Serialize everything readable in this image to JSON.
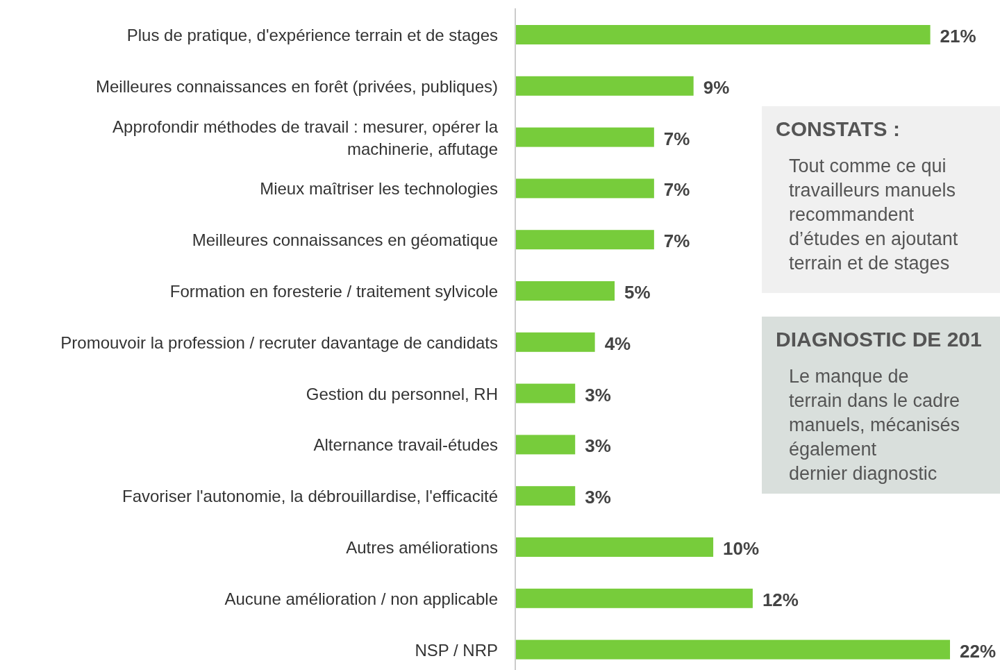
{
  "chart_data": {
    "type": "bar",
    "orientation": "horizontal",
    "categories": [
      "Plus de pratique, d'expérience terrain et de stages",
      "Meilleures connaissances en forêt (privées, publiques)",
      "Approfondir méthodes de travail : mesurer, opérer la machinerie, affutage",
      "Mieux maîtriser les technologies",
      "Meilleures connaissances en géomatique",
      "Formation en foresterie / traitement sylvicole",
      "Promouvoir la profession / recruter davantage de candidats",
      "Gestion du personnel, RH",
      "Alternance travail-études",
      "Favoriser l'autonomie, la débrouillardise, l'efficacité",
      "Autres améliorations",
      "Aucune amélioration / non applicable",
      "NSP / NRP"
    ],
    "values": [
      21,
      9,
      7,
      7,
      7,
      5,
      4,
      3,
      3,
      3,
      10,
      12,
      22
    ],
    "value_labels": [
      "21%",
      "9%",
      "7%",
      "7%",
      "7%",
      "5%",
      "4%",
      "3%",
      "3%",
      "3%",
      "10%",
      "12%",
      "22%"
    ],
    "color": "#77cc3b",
    "annotations": [
      "CONSTATS :",
      "Tout comme ce qui\ntravailleurs manuels\nrecommandent\nd’études en ajoutant\nterrain et de stages",
      "DIAGNOSTIC DE 201",
      "Le manque de\nterrain dans le cadre\nmanuels, mécanisés\négalement\ndernier diagnostic"
    ]
  }
}
